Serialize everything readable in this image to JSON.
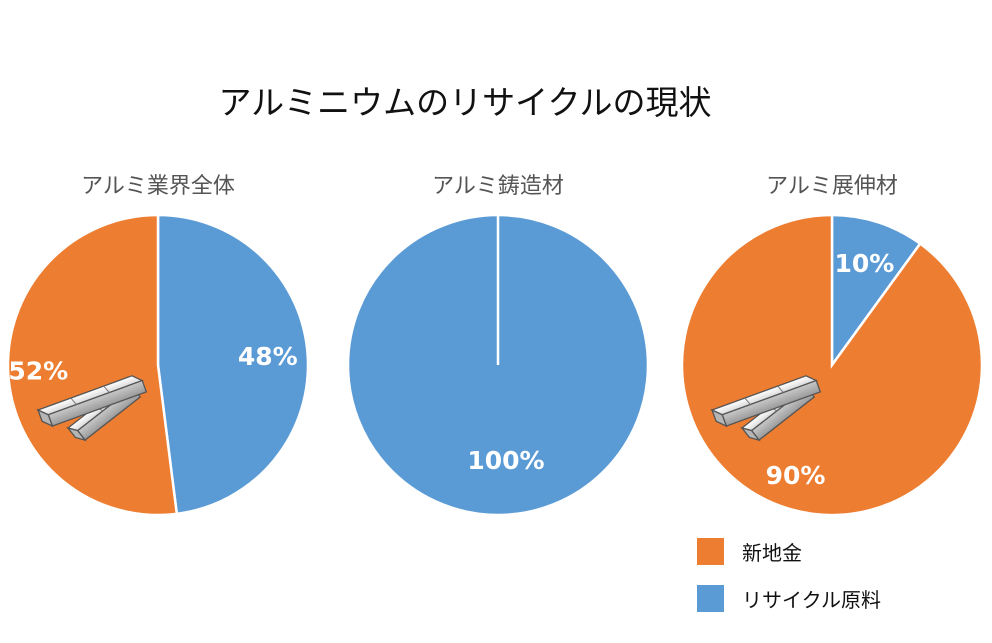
{
  "chart_data": {
    "type": "pie",
    "title": "アルミニウムのリサイクルの現状",
    "legend": {
      "placement": "bottom-right",
      "entries": [
        {
          "name": "新地金",
          "color": "#ED7D31"
        },
        {
          "name": "リサイクル原料",
          "color": "#5B9BD5"
        }
      ]
    },
    "pies": [
      {
        "title": "アルミ業界全体",
        "slices": [
          {
            "name": "リサイクル原料",
            "value": 48,
            "label": "48%",
            "color": "#5B9BD5"
          },
          {
            "name": "新地金",
            "value": 52,
            "label": "52%",
            "color": "#ED7D31"
          }
        ]
      },
      {
        "title": "アルミ鋳造材",
        "slices": [
          {
            "name": "リサイクル原料",
            "value": 100,
            "label": "100%",
            "color": "#5B9BD5"
          }
        ]
      },
      {
        "title": "アルミ展伸材",
        "slices": [
          {
            "name": "リサイクル原料",
            "value": 10,
            "label": "10%",
            "color": "#5B9BD5"
          },
          {
            "name": "新地金",
            "value": 90,
            "label": "90%",
            "color": "#ED7D31"
          }
        ]
      }
    ]
  },
  "icons": [
    "aluminum-ingot-icon"
  ]
}
